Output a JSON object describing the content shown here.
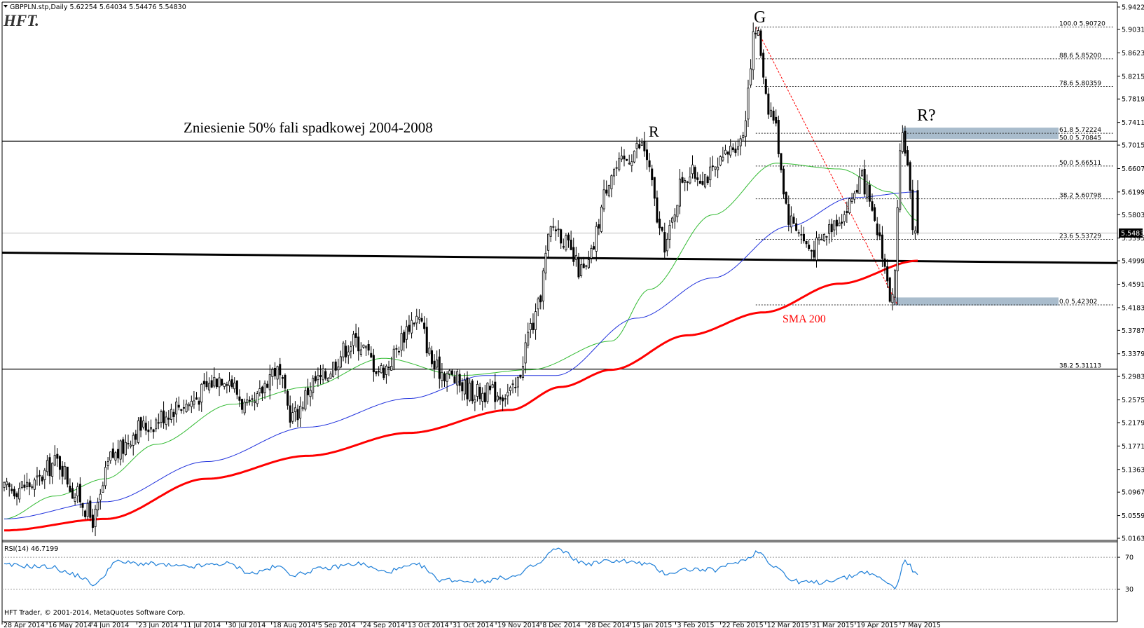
{
  "header": {
    "symbol_line": "GBPPLN.stp,Daily  5.62254 5.64034 5.54476 5.54830",
    "logo": "HFT."
  },
  "footer": {
    "copyright": "HFT Trader, © 2001-2014, MetaQuotes Software Corp."
  },
  "colors": {
    "sma50": "#33bb33",
    "sma100": "#2233dd",
    "sma200": "#ff0000",
    "zone": "#a9bccc",
    "fib_diag": "#ff0000"
  },
  "chart_data": [
    {
      "type": "candlestick",
      "symbol": "GBPPLN.stp",
      "timeframe": "Daily",
      "ohlc_last": {
        "open": 5.62254,
        "high": 5.64034,
        "low": 5.54476,
        "close": 5.5483
      },
      "current_price_label": "5.54830",
      "ylim": [
        5.0163,
        5.9422
      ],
      "y_ticks": [
        "5.94220",
        "5.90310",
        "5.86230",
        "5.82150",
        "5.78190",
        "5.74110",
        "5.70150",
        "5.66070",
        "5.61990",
        "5.58030",
        "5.53950",
        "5.49990",
        "5.45910",
        "5.41830",
        "5.37870",
        "5.33790",
        "5.29830",
        "5.25750",
        "5.21790",
        "5.17710",
        "5.13630",
        "5.09670",
        "5.05590",
        "5.01630"
      ],
      "x_ticks": [
        "28 Apr 2014",
        "16 May 2014",
        "4 Jun 2014",
        "23 Jun 2014",
        "11 Jul 2014",
        "30 Jul 2014",
        "18 Aug 2014",
        "5 Sep 2014",
        "24 Sep 2014",
        "13 Oct 2014",
        "31 Oct 2014",
        "19 Nov 2014",
        "8 Dec 2014",
        "28 Dec 2014",
        "15 Jan 2015",
        "3 Feb 2015",
        "22 Feb 2015",
        "12 Mar 2015",
        "31 Mar 2015",
        "19 Apr 2015",
        "7 May 2015"
      ],
      "anchors": [
        {
          "i": 0,
          "v": 5.1
        },
        {
          "i": 12,
          "v": 5.11
        },
        {
          "i": 22,
          "v": 5.15
        },
        {
          "i": 30,
          "v": 5.09
        },
        {
          "i": 36,
          "v": 5.05
        },
        {
          "i": 44,
          "v": 5.16
        },
        {
          "i": 55,
          "v": 5.21
        },
        {
          "i": 72,
          "v": 5.25
        },
        {
          "i": 88,
          "v": 5.3
        },
        {
          "i": 98,
          "v": 5.24
        },
        {
          "i": 108,
          "v": 5.31
        },
        {
          "i": 115,
          "v": 5.23
        },
        {
          "i": 124,
          "v": 5.29
        },
        {
          "i": 140,
          "v": 5.36
        },
        {
          "i": 150,
          "v": 5.31
        },
        {
          "i": 164,
          "v": 5.4
        },
        {
          "i": 172,
          "v": 5.31
        },
        {
          "i": 188,
          "v": 5.27
        },
        {
          "i": 202,
          "v": 5.27
        },
        {
          "i": 210,
          "v": 5.39
        },
        {
          "i": 218,
          "v": 5.56
        },
        {
          "i": 230,
          "v": 5.48
        },
        {
          "i": 242,
          "v": 5.66
        },
        {
          "i": 253,
          "v": 5.7
        },
        {
          "i": 262,
          "v": 5.53
        },
        {
          "i": 270,
          "v": 5.65
        },
        {
          "i": 280,
          "v": 5.65
        },
        {
          "i": 292,
          "v": 5.71
        },
        {
          "i": 298,
          "v": 5.9
        },
        {
          "i": 304,
          "v": 5.76
        },
        {
          "i": 312,
          "v": 5.57
        },
        {
          "i": 320,
          "v": 5.52
        },
        {
          "i": 332,
          "v": 5.58
        },
        {
          "i": 340,
          "v": 5.64
        },
        {
          "i": 346,
          "v": 5.55
        },
        {
          "i": 352,
          "v": 5.43
        },
        {
          "i": 356,
          "v": 5.72
        },
        {
          "i": 361,
          "v": 5.55
        }
      ],
      "sma200": [
        [
          0,
          5.03
        ],
        [
          40,
          5.05
        ],
        [
          80,
          5.12
        ],
        [
          120,
          5.16
        ],
        [
          160,
          5.2
        ],
        [
          200,
          5.24
        ],
        [
          220,
          5.28
        ],
        [
          240,
          5.31
        ],
        [
          270,
          5.37
        ],
        [
          300,
          5.41
        ],
        [
          330,
          5.46
        ],
        [
          361,
          5.5
        ]
      ],
      "sma100": [
        [
          0,
          5.05
        ],
        [
          40,
          5.08
        ],
        [
          80,
          5.15
        ],
        [
          120,
          5.21
        ],
        [
          160,
          5.26
        ],
        [
          190,
          5.3
        ],
        [
          218,
          5.3
        ],
        [
          250,
          5.4
        ],
        [
          280,
          5.47
        ],
        [
          310,
          5.56
        ],
        [
          335,
          5.61
        ],
        [
          361,
          5.62
        ]
      ],
      "sma50": [
        [
          0,
          5.05
        ],
        [
          20,
          5.09
        ],
        [
          40,
          5.12
        ],
        [
          60,
          5.18
        ],
        [
          90,
          5.25
        ],
        [
          120,
          5.28
        ],
        [
          150,
          5.33
        ],
        [
          180,
          5.3
        ],
        [
          208,
          5.31
        ],
        [
          240,
          5.36
        ],
        [
          255,
          5.45
        ],
        [
          280,
          5.58
        ],
        [
          305,
          5.67
        ],
        [
          330,
          5.66
        ],
        [
          350,
          5.62
        ],
        [
          361,
          5.57
        ]
      ],
      "fib_levels": [
        {
          "level": "100.0",
          "price": "5.90720",
          "v": 5.9072
        },
        {
          "level": "88.6",
          "price": "5.85200",
          "v": 5.852
        },
        {
          "level": "78.6",
          "price": "5.80359",
          "v": 5.80359
        },
        {
          "level": "61.8",
          "price": "5.72224",
          "v": 5.72224
        },
        {
          "level": "50.0",
          "price": "5.66511",
          "v": 5.66511
        },
        {
          "level": "38.2",
          "price": "5.60798",
          "v": 5.60798
        },
        {
          "level": "23.6",
          "price": "5.53729",
          "v": 5.53729
        },
        {
          "level": "0.0",
          "price": "5.42302",
          "v": 5.42302
        }
      ],
      "fib_50_long": {
        "level": "50.0",
        "price": "5.70845",
        "v": 5.70845
      },
      "fib_38_long": {
        "level": "38.2",
        "price": "5.31113",
        "v": 5.31113
      },
      "support_line": {
        "v_start": 5.514,
        "v_end": 5.496
      },
      "annotations": {
        "retracement_note": "Zniesienie 50% fali spadkowej 2004-2008",
        "r1": "R",
        "g": "G",
        "r2": "R?",
        "sma200_label": "SMA 200"
      }
    },
    {
      "type": "line",
      "title": "RSI(14) 46.7199",
      "ylim": [
        20,
        85
      ],
      "y_ticks": [
        "70",
        "30"
      ],
      "anchors": [
        {
          "i": 0,
          "v": 60
        },
        {
          "i": 18,
          "v": 58
        },
        {
          "i": 28,
          "v": 48
        },
        {
          "i": 36,
          "v": 36
        },
        {
          "i": 44,
          "v": 64
        },
        {
          "i": 55,
          "v": 62
        },
        {
          "i": 72,
          "v": 58
        },
        {
          "i": 88,
          "v": 62
        },
        {
          "i": 98,
          "v": 50
        },
        {
          "i": 108,
          "v": 58
        },
        {
          "i": 115,
          "v": 48
        },
        {
          "i": 124,
          "v": 55
        },
        {
          "i": 140,
          "v": 62
        },
        {
          "i": 150,
          "v": 52
        },
        {
          "i": 164,
          "v": 60
        },
        {
          "i": 172,
          "v": 42
        },
        {
          "i": 188,
          "v": 40
        },
        {
          "i": 202,
          "v": 46
        },
        {
          "i": 210,
          "v": 60
        },
        {
          "i": 218,
          "v": 80
        },
        {
          "i": 230,
          "v": 62
        },
        {
          "i": 242,
          "v": 66
        },
        {
          "i": 253,
          "v": 62
        },
        {
          "i": 262,
          "v": 50
        },
        {
          "i": 270,
          "v": 55
        },
        {
          "i": 280,
          "v": 54
        },
        {
          "i": 292,
          "v": 66
        },
        {
          "i": 298,
          "v": 77
        },
        {
          "i": 304,
          "v": 60
        },
        {
          "i": 312,
          "v": 40
        },
        {
          "i": 320,
          "v": 38
        },
        {
          "i": 332,
          "v": 44
        },
        {
          "i": 340,
          "v": 52
        },
        {
          "i": 346,
          "v": 44
        },
        {
          "i": 352,
          "v": 32
        },
        {
          "i": 356,
          "v": 65
        },
        {
          "i": 361,
          "v": 47
        }
      ]
    }
  ]
}
